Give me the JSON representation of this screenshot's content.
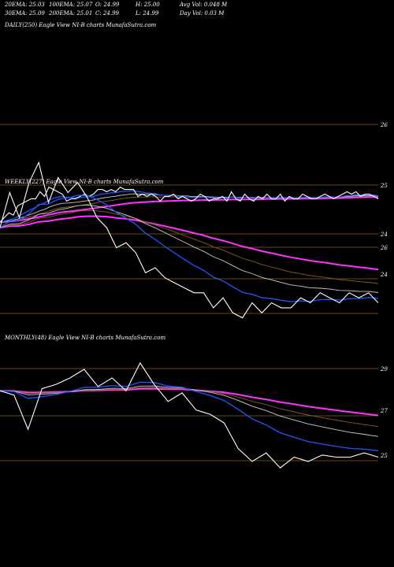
{
  "header": {
    "ema20": "20EMA: 25.03",
    "ema100": "100EMA: 25.07",
    "open": "O: 24.99",
    "high": "H: 25.00",
    "avgvol": "Avg Vol: 0.048 M",
    "ema30": "30EMA: 25.09",
    "ema200": "200EMA: 25.01",
    "close": "C: 24.99",
    "low": "L: 24.99",
    "dayvol": "Day Vol: 0.03 M"
  },
  "colors": {
    "price": "#ffffff",
    "ema_fast": "#2255ff",
    "ema_mid": "#cccccc",
    "ema_slow": "#ff33ff",
    "ema_brown": "#8a5a2a",
    "grid": "#8a5a18"
  },
  "chart_data": [
    {
      "type": "line",
      "title": "DAILY(250) Eagle  View  NI-B charts MunafaSutra.com",
      "y_ticks": [
        "26",
        "25",
        "24"
      ],
      "series": [
        {
          "values": [
            24.3,
            24.5,
            24.7,
            24.6,
            25.0,
            25.1,
            25.2,
            25.3,
            25.3,
            25.6,
            25.4,
            25.8,
            25.7,
            25.6,
            25.5,
            25.2,
            25.3,
            25.3,
            25.4,
            25.5,
            25.4,
            25.5,
            25.7,
            25.7,
            25.6,
            25.7,
            25.6,
            25.8,
            25.7,
            25.7,
            25.7,
            25.4,
            25.5,
            25.4,
            25.5,
            25.4,
            25.2,
            25.4,
            25.4,
            25.5,
            25.3,
            25.4,
            25.3,
            25.2,
            25.3,
            25.5,
            25.4,
            25.2,
            25.3,
            25.3,
            25.4,
            25.2,
            25.6,
            25.3,
            25.2,
            25.5,
            25.3,
            25.2,
            25.4,
            25.3,
            25.5,
            25.3,
            25.3,
            25.5,
            25.2,
            25.4,
            25.3,
            25.3,
            25.5,
            25.4,
            25.3,
            25.3,
            25.4,
            25.5,
            25.4,
            25.3,
            25.4,
            25.5,
            25.6,
            25.5,
            25.6,
            25.4,
            25.5,
            25.5,
            25.4,
            25.3
          ]
        }
      ]
    },
    {
      "type": "line",
      "title": "WEEKLY(227) Eagle  View  NI-B charts MunafaSutra.com",
      "y_ticks": [
        "26",
        "24"
      ],
      "series": [
        {
          "values": [
            25.6,
            26.3,
            25.8,
            26.5,
            26.9,
            26.1,
            26.6,
            26.3,
            26.5,
            26.2,
            25.8,
            25.6,
            25.2,
            25.3,
            25.1,
            24.7,
            24.8,
            24.6,
            24.5,
            24.4,
            24.3,
            24.3,
            24.0,
            24.2,
            23.9,
            23.8,
            24.1,
            23.9,
            24.1,
            24.0,
            24.0,
            24.2,
            24.1,
            24.3,
            24.2,
            24.1,
            24.3,
            24.2,
            24.3,
            24.1
          ]
        }
      ]
    },
    {
      "type": "line",
      "title": "MONTHLY(48) Eagle  View  NI-B charts MunafaSutra.com",
      "y_ticks": [
        "29",
        "27",
        "25"
      ],
      "series": [
        {
          "values": [
            28.0,
            27.8,
            26.2,
            28.1,
            28.3,
            28.6,
            29.0,
            28.2,
            28.6,
            28.0,
            29.3,
            28.3,
            27.5,
            27.9,
            27.1,
            26.9,
            26.5,
            25.3,
            24.7,
            25.1,
            24.4,
            24.9,
            24.7,
            25.0,
            24.9,
            24.9,
            25.1,
            24.9
          ]
        }
      ]
    }
  ]
}
